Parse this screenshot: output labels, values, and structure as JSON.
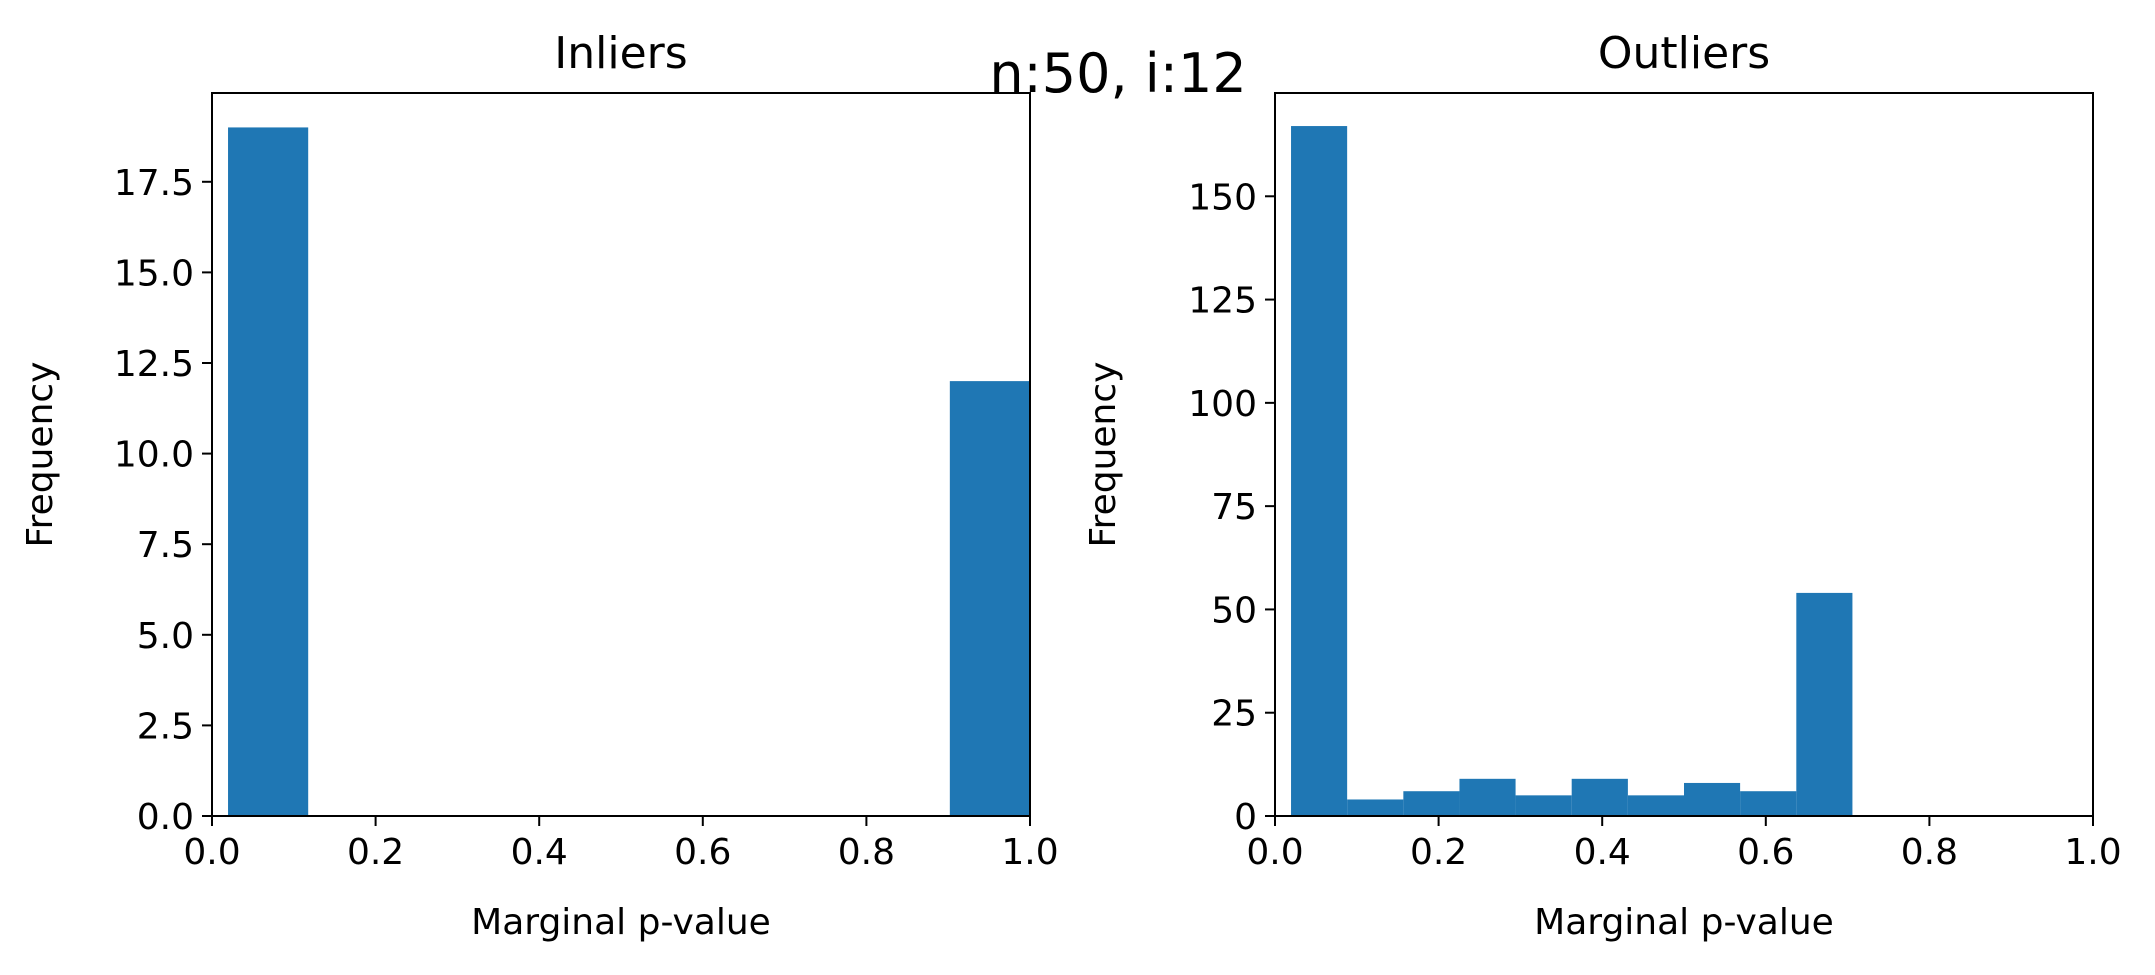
{
  "figure": {
    "suptitle": "n:50, i:12"
  },
  "chart_data": [
    {
      "type": "bar",
      "title": "Inliers",
      "xlabel": "Marginal p-value",
      "ylabel": "Frequency",
      "xlim": [
        0.0,
        1.0
      ],
      "ylim": [
        0,
        19.95
      ],
      "xticks": [
        0.0,
        0.2,
        0.4,
        0.6,
        0.8,
        1.0
      ],
      "xtick_labels": [
        "0.0",
        "0.2",
        "0.4",
        "0.6",
        "0.8",
        "1.0"
      ],
      "yticks": [
        0,
        2.5,
        5,
        7.5,
        10,
        12.5,
        15,
        17.5
      ],
      "ytick_labels": [
        "0.0",
        "2.5",
        "5.0",
        "7.5",
        "10.0",
        "12.5",
        "15.0",
        "17.5"
      ],
      "grid": false,
      "bar_color": "#1f77b4",
      "bins": [
        {
          "x0": 0.0196,
          "x1": 0.1176,
          "value": 19
        },
        {
          "x0": 0.1176,
          "x1": 0.2157,
          "value": 0
        },
        {
          "x0": 0.2157,
          "x1": 0.3137,
          "value": 0
        },
        {
          "x0": 0.3137,
          "x1": 0.4118,
          "value": 0
        },
        {
          "x0": 0.4118,
          "x1": 0.5098,
          "value": 0
        },
        {
          "x0": 0.5098,
          "x1": 0.6078,
          "value": 0
        },
        {
          "x0": 0.6078,
          "x1": 0.7059,
          "value": 0
        },
        {
          "x0": 0.7059,
          "x1": 0.8039,
          "value": 0
        },
        {
          "x0": 0.8039,
          "x1": 0.902,
          "value": 0
        },
        {
          "x0": 0.902,
          "x1": 1.0,
          "value": 12
        }
      ]
    },
    {
      "type": "bar",
      "title": "Outliers",
      "xlabel": "Marginal p-value",
      "ylabel": "Frequency",
      "xlim": [
        0.0,
        1.0
      ],
      "ylim": [
        0,
        175
      ],
      "xticks": [
        0.0,
        0.2,
        0.4,
        0.6,
        0.8,
        1.0
      ],
      "xtick_labels": [
        "0.0",
        "0.2",
        "0.4",
        "0.6",
        "0.8",
        "1.0"
      ],
      "yticks": [
        0,
        25,
        50,
        75,
        100,
        125,
        150
      ],
      "ytick_labels": [
        "0",
        "25",
        "50",
        "75",
        "100",
        "125",
        "150"
      ],
      "grid": false,
      "bar_color": "#1f77b4",
      "bins": [
        {
          "x0": 0.0196,
          "x1": 0.0882,
          "value": 167
        },
        {
          "x0": 0.0882,
          "x1": 0.1569,
          "value": 4
        },
        {
          "x0": 0.1569,
          "x1": 0.2255,
          "value": 6
        },
        {
          "x0": 0.2255,
          "x1": 0.2941,
          "value": 9
        },
        {
          "x0": 0.2941,
          "x1": 0.3627,
          "value": 5
        },
        {
          "x0": 0.3627,
          "x1": 0.4314,
          "value": 9
        },
        {
          "x0": 0.4314,
          "x1": 0.5,
          "value": 5
        },
        {
          "x0": 0.5,
          "x1": 0.5686,
          "value": 8
        },
        {
          "x0": 0.5686,
          "x1": 0.6373,
          "value": 6
        },
        {
          "x0": 0.6373,
          "x1": 0.7059,
          "value": 54
        }
      ]
    }
  ]
}
